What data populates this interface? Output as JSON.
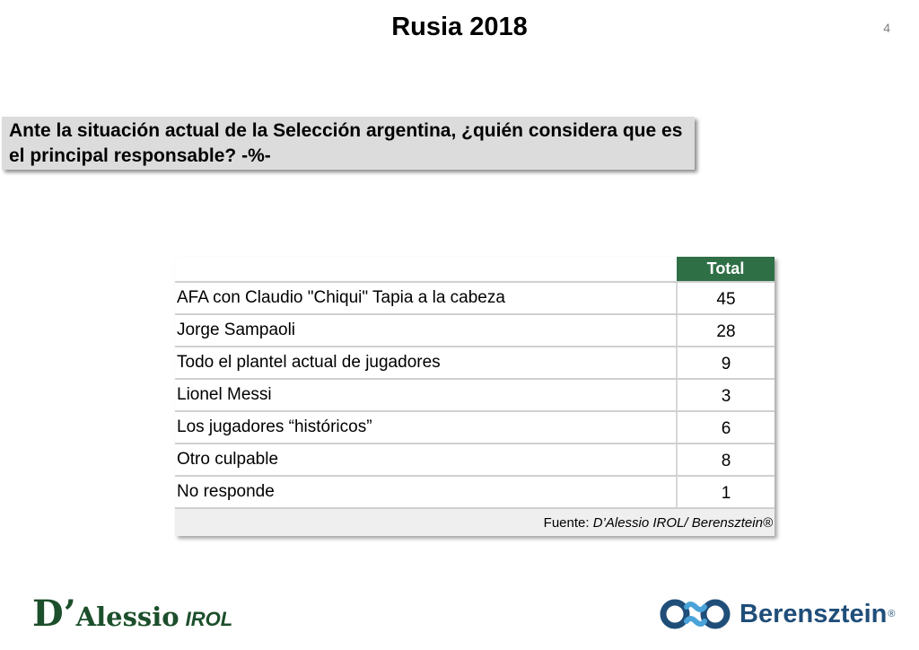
{
  "slide": {
    "title": "Rusia 2018",
    "page_number": "4"
  },
  "question": {
    "text": "Ante la situación actual de la Selección argentina, ¿quién considera que es el principal responsable? -%-"
  },
  "table": {
    "header": "Total",
    "rows": [
      {
        "label": "AFA con Claudio \"Chiqui\" Tapia a la cabeza",
        "value": "45"
      },
      {
        "label": "Jorge Sampaoli",
        "value": "28"
      },
      {
        "label": "Todo el plantel actual de jugadores",
        "value": "9"
      },
      {
        "label": "Lionel Messi",
        "value": "3"
      },
      {
        "label": "Los jugadores “históricos”",
        "value": "6"
      },
      {
        "label": "Otro culpable",
        "value": "8"
      },
      {
        "label": "No responde",
        "value": "1"
      }
    ],
    "source_prefix": "Fuente: ",
    "source_name": "D’Alessio IROL/ Berensztein®"
  },
  "logos": {
    "dalessio_d": "D’",
    "dalessio_name": "Alessio",
    "dalessio_suffix": "IROL",
    "berensztein_name": "Berensztein",
    "berensztein_reg": "®"
  },
  "colors": {
    "header_green": "#2f6f46",
    "logo_green": "#1c4f2b",
    "logo_blue": "#1f4e79"
  }
}
